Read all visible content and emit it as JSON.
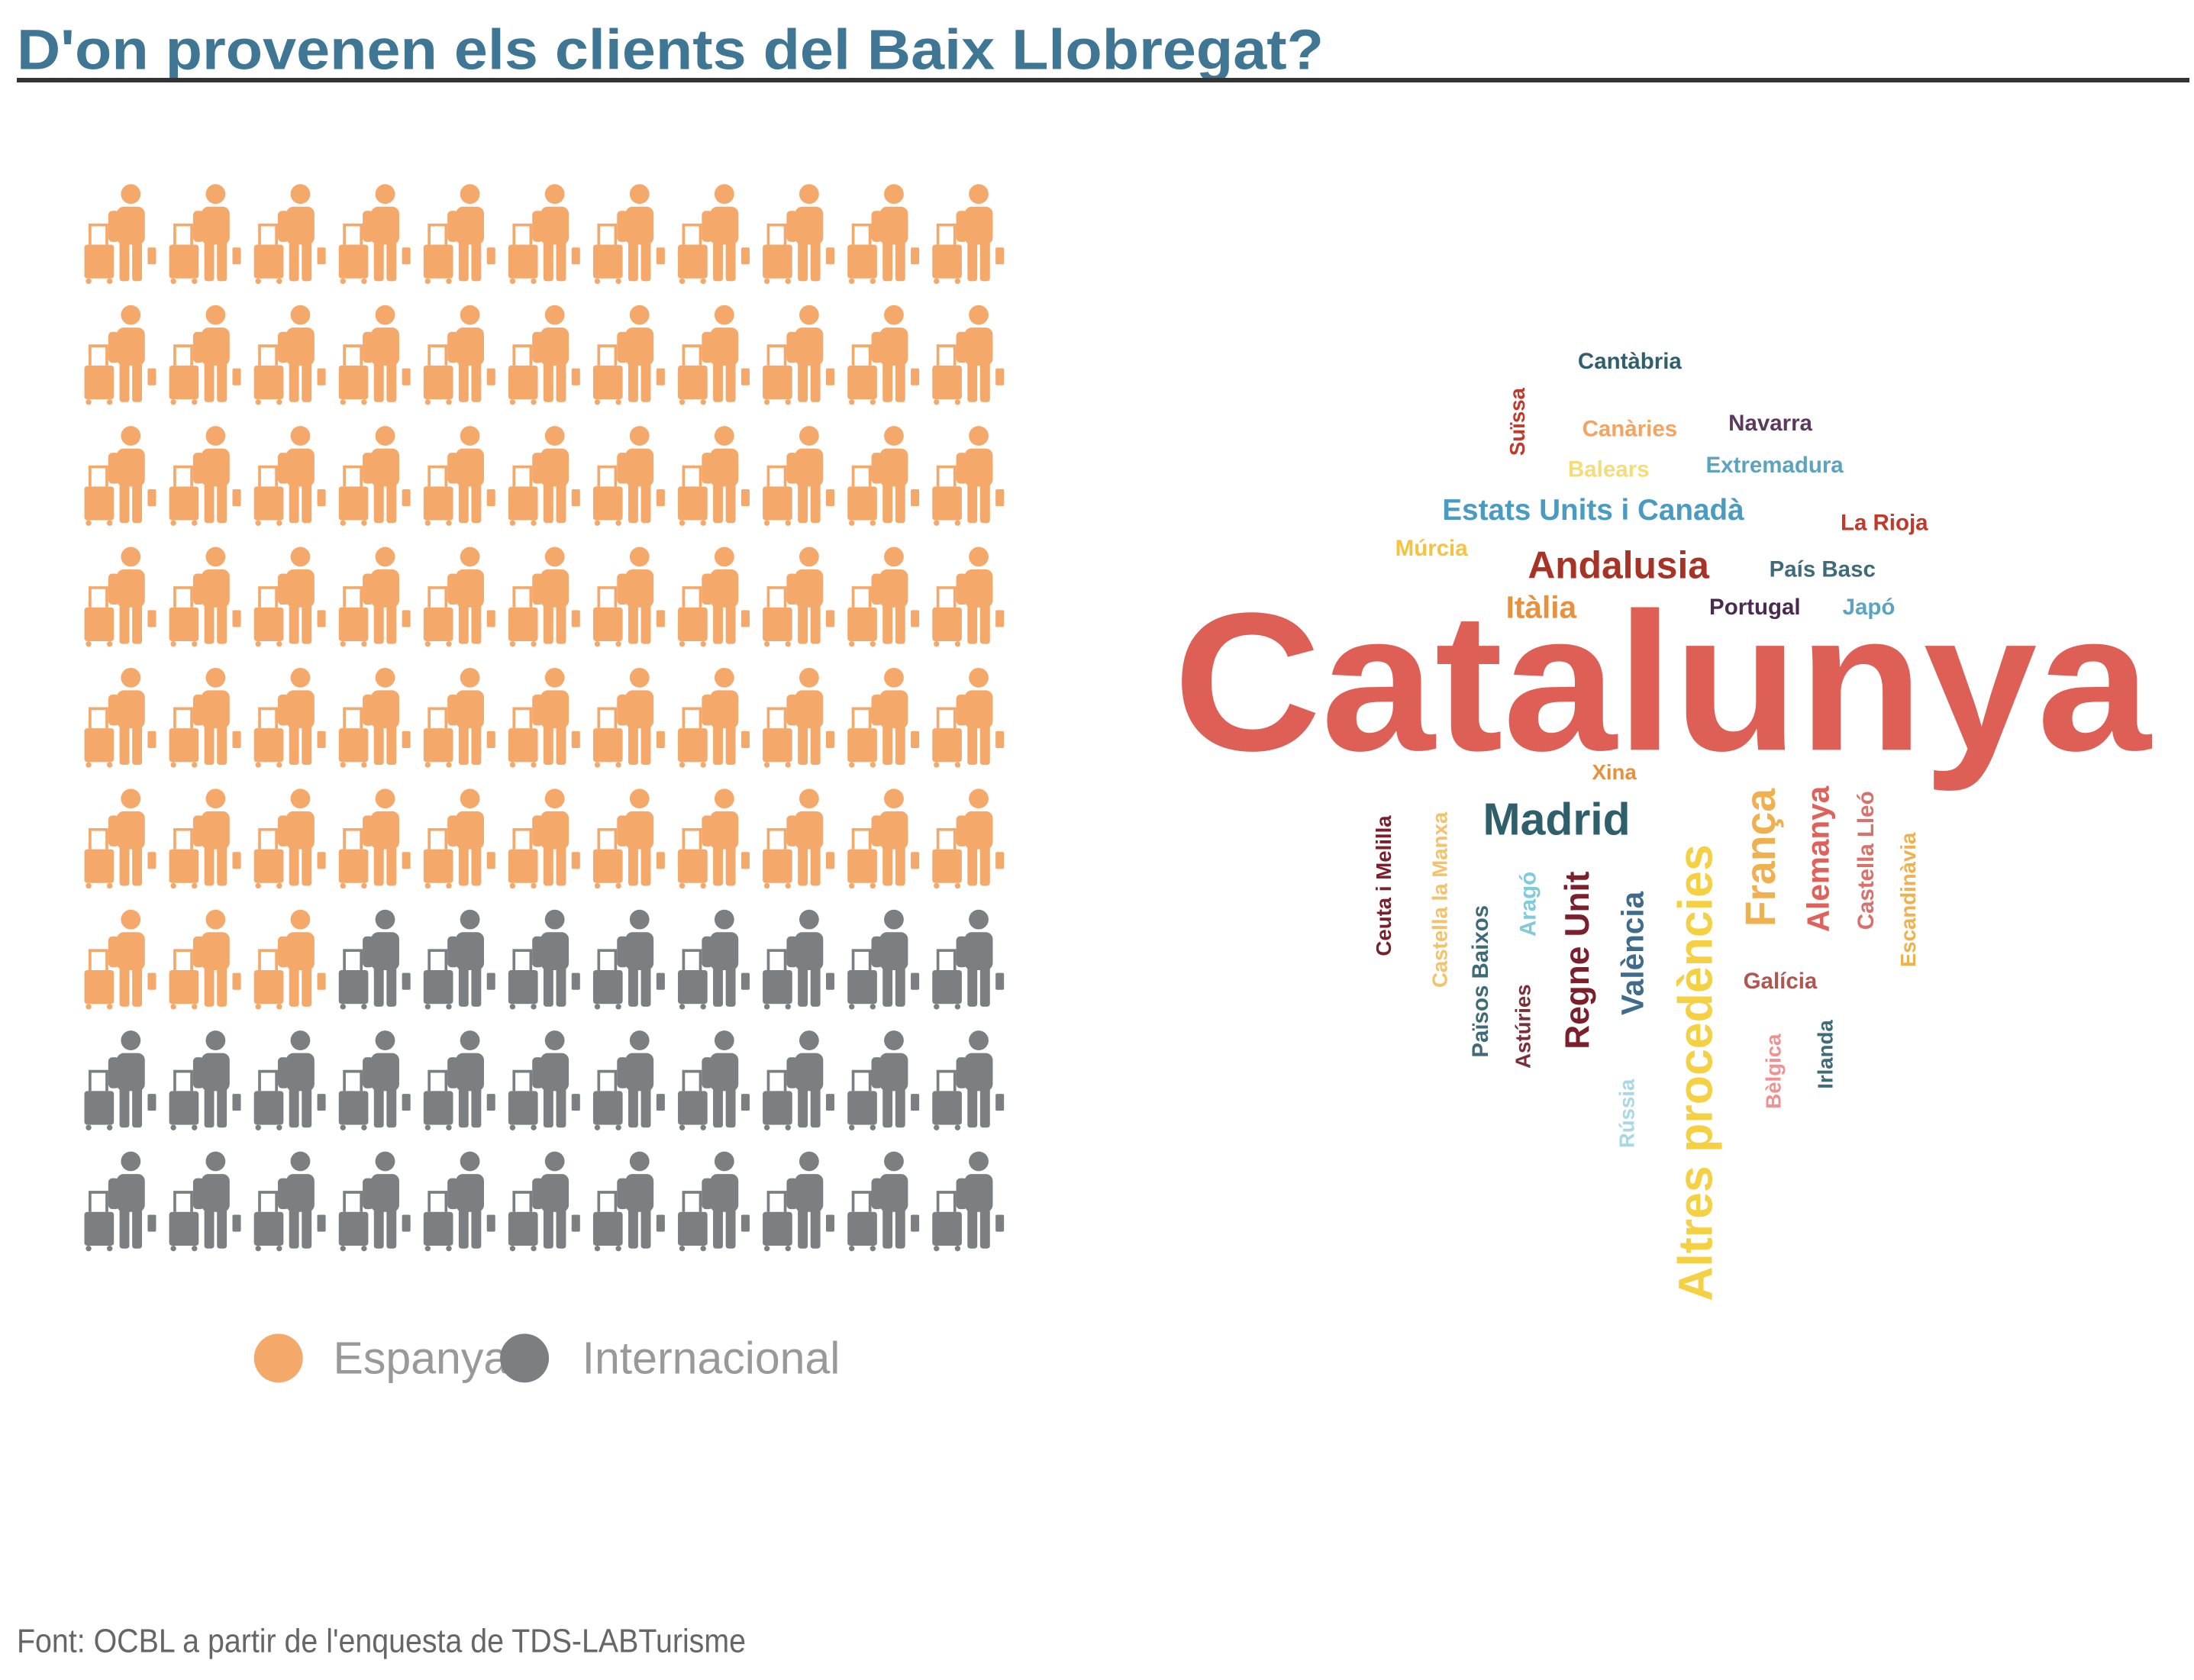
{
  "title": "D'on provenen els clients del Baix Llobregat?",
  "source": "Font: OCBL a partir de l'enquesta de TDS-LABTurisme",
  "chart_data": [
    {
      "type": "waffle",
      "categories": [
        "Espanya",
        "Internacional"
      ],
      "values": [
        69,
        30
      ],
      "colors": [
        "#f4a96b",
        "#7b7f82"
      ]
    },
    {
      "type": "wordcloud",
      "words": [
        {
          "text": "Cantàbria",
          "color": "#2f5f6b"
        },
        {
          "text": "Suïssa",
          "color": "#c0392b"
        },
        {
          "text": "Canàries",
          "color": "#f4a460"
        },
        {
          "text": "Navarra",
          "color": "#5b3a5e"
        },
        {
          "text": "Balears",
          "color": "#f6dc78"
        },
        {
          "text": "Extremadura",
          "color": "#5ba3c0"
        },
        {
          "text": "Estats Units i Canadà",
          "color": "#4a9bc2"
        },
        {
          "text": "La Rioja",
          "color": "#c0392b"
        },
        {
          "text": "Múrcia",
          "color": "#f5c242"
        },
        {
          "text": "Andalusia",
          "color": "#a63326"
        },
        {
          "text": "País Basc",
          "color": "#3f6b78"
        },
        {
          "text": "Itàlia",
          "color": "#e8913c"
        },
        {
          "text": "Portugal",
          "color": "#4a2b4f"
        },
        {
          "text": "Japó",
          "color": "#5ba3c0"
        },
        {
          "text": "Catalunya",
          "color": "#de5f55"
        },
        {
          "text": "Xina",
          "color": "#e8913c"
        },
        {
          "text": "Madrid",
          "color": "#2f5f6b"
        },
        {
          "text": "Ceuta i Melilla",
          "color": "#7a1f2b"
        },
        {
          "text": "Castella la Manxa",
          "color": "#f5c26b"
        },
        {
          "text": "Països Baixos",
          "color": "#3f6b78"
        },
        {
          "text": "Aragó",
          "color": "#7fcbdc"
        },
        {
          "text": "Astúries",
          "color": "#7a2e3a"
        },
        {
          "text": "Regne Unit",
          "color": "#7a1f2b"
        },
        {
          "text": "València",
          "color": "#3f6b8c"
        },
        {
          "text": "Rússia",
          "color": "#a8d8e6"
        },
        {
          "text": "Altres procedències",
          "color": "#f5d042"
        },
        {
          "text": "França",
          "color": "#f0b050"
        },
        {
          "text": "Alemanya",
          "color": "#e0605a"
        },
        {
          "text": "Castella Lleó",
          "color": "#d9706a"
        },
        {
          "text": "Escandinàvia",
          "color": "#f0b050"
        },
        {
          "text": "Galícia",
          "color": "#b05550"
        },
        {
          "text": "Bèlgica",
          "color": "#f09090"
        },
        {
          "text": "Irlanda",
          "color": "#3f6b78"
        }
      ]
    }
  ]
}
